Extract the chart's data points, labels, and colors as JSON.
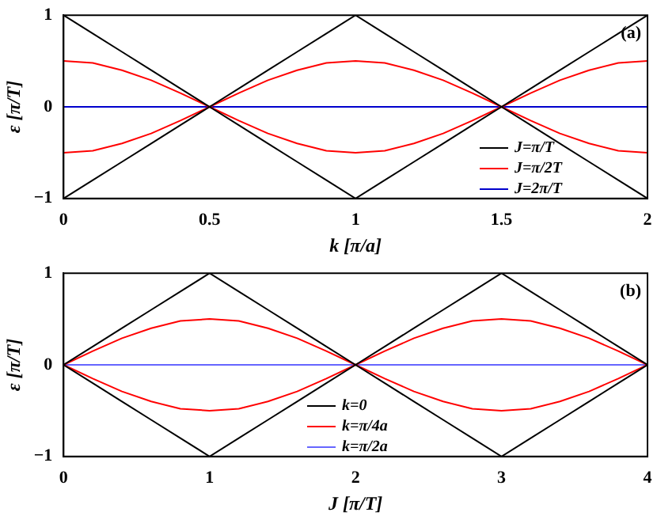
{
  "chart_data": [
    {
      "type": "line",
      "xlabel": "k [π/a]",
      "ylabel": "ε [π/T]",
      "annotations": [
        "(a)"
      ],
      "legend": "bottom right",
      "marker": "none",
      "x": [
        0,
        0.1,
        0.2,
        0.3,
        0.4,
        0.5,
        0.6,
        0.7,
        0.8,
        0.9,
        1,
        1.1,
        1.2,
        1.3,
        1.4,
        1.5,
        1.6,
        1.7,
        1.8,
        1.9,
        2
      ],
      "xlim": [
        0,
        2
      ],
      "xticks": [
        0,
        0.5,
        1,
        1.5,
        2
      ],
      "ylim": [
        -1,
        1
      ],
      "yticks": [
        -1,
        0,
        1
      ],
      "series": [
        {
          "name": "J=π/T",
          "color": "#000000",
          "values": [
            1,
            0.8,
            0.6,
            0.4,
            0.2,
            0,
            -0.2,
            -0.4,
            -0.6,
            -0.8,
            -1,
            -0.8,
            -0.6,
            -0.4,
            -0.2,
            0,
            0.2,
            0.4,
            0.6,
            0.8,
            1
          ]
        },
        {
          "color": "#000000",
          "values": [
            -1,
            -0.8,
            -0.6,
            -0.4,
            -0.2,
            0,
            0.2,
            0.4,
            0.6,
            0.8,
            1,
            0.8,
            0.6,
            0.4,
            0.2,
            0,
            -0.2,
            -0.4,
            -0.6,
            -0.8,
            -1
          ]
        },
        {
          "name": "J=π/2T",
          "color": "#ff0000",
          "values": [
            0.5,
            0.48,
            0.4,
            0.29,
            0.15,
            0,
            -0.15,
            -0.29,
            -0.4,
            -0.48,
            -0.5,
            -0.48,
            -0.4,
            -0.29,
            -0.15,
            0,
            0.15,
            0.29,
            0.4,
            0.48,
            0.5
          ]
        },
        {
          "color": "#ff0000",
          "values": [
            -0.5,
            -0.48,
            -0.4,
            -0.29,
            -0.15,
            0,
            0.15,
            0.29,
            0.4,
            0.48,
            0.5,
            0.48,
            0.4,
            0.29,
            0.15,
            0,
            -0.15,
            -0.29,
            -0.4,
            -0.48,
            -0.5
          ]
        },
        {
          "name": "J=2π/T",
          "color": "#0000cc",
          "values": [
            0,
            0,
            0,
            0,
            0,
            0,
            0,
            0,
            0,
            0,
            0,
            0,
            0,
            0,
            0,
            0,
            0,
            0,
            0,
            0,
            0
          ]
        }
      ]
    },
    {
      "type": "line",
      "xlabel": "J [π/T]",
      "ylabel": "ε [π/T]",
      "annotations": [
        "(b)"
      ],
      "legend": "bottom",
      "marker": "none",
      "x": [
        0,
        0.2,
        0.4,
        0.6,
        0.8,
        1,
        1.2,
        1.4,
        1.6,
        1.8,
        2,
        2.2,
        2.4,
        2.6,
        2.8,
        3,
        3.2,
        3.4,
        3.6,
        3.8,
        4
      ],
      "xlim": [
        0,
        4
      ],
      "xticks": [
        0,
        1,
        2,
        3,
        4
      ],
      "ylim": [
        -1,
        1
      ],
      "yticks": [
        -1,
        0,
        1
      ],
      "series": [
        {
          "name": "k=0",
          "color": "#000000",
          "values": [
            0,
            0.2,
            0.4,
            0.6,
            0.8,
            1,
            0.8,
            0.6,
            0.4,
            0.2,
            0,
            0.2,
            0.4,
            0.6,
            0.8,
            1,
            0.8,
            0.6,
            0.4,
            0.2,
            0
          ]
        },
        {
          "color": "#000000",
          "values": [
            0,
            -0.2,
            -0.4,
            -0.6,
            -0.8,
            -1,
            -0.8,
            -0.6,
            -0.4,
            -0.2,
            0,
            -0.2,
            -0.4,
            -0.6,
            -0.8,
            -1,
            -0.8,
            -0.6,
            -0.4,
            -0.2,
            0
          ]
        },
        {
          "name": "k=π/4a",
          "color": "#ff0000",
          "values": [
            0,
            0.15,
            0.29,
            0.4,
            0.48,
            0.5,
            0.48,
            0.4,
            0.29,
            0.15,
            0,
            0.15,
            0.29,
            0.4,
            0.48,
            0.5,
            0.48,
            0.4,
            0.29,
            0.15,
            0
          ]
        },
        {
          "color": "#ff0000",
          "values": [
            0,
            -0.15,
            -0.29,
            -0.4,
            -0.48,
            -0.5,
            -0.48,
            -0.4,
            -0.29,
            -0.15,
            0,
            -0.15,
            -0.29,
            -0.4,
            -0.48,
            -0.5,
            -0.48,
            -0.4,
            -0.29,
            -0.15,
            0
          ]
        },
        {
          "name": "k=π/2a",
          "color": "#6666ff",
          "values": [
            0,
            0,
            0,
            0,
            0,
            0,
            0,
            0,
            0,
            0,
            0,
            0,
            0,
            0,
            0,
            0,
            0,
            0,
            0,
            0,
            0
          ]
        }
      ]
    }
  ]
}
